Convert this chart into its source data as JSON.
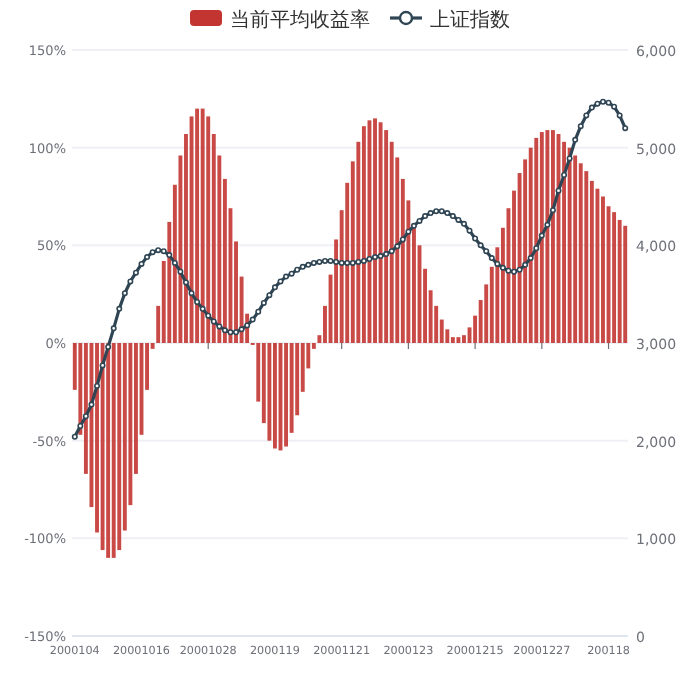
{
  "chart_data": {
    "type": "bar",
    "categories": [
      "2000104",
      null,
      null,
      null,
      null,
      null,
      null,
      null,
      null,
      null,
      null,
      null,
      "20001016",
      null,
      null,
      null,
      null,
      null,
      null,
      null,
      null,
      null,
      null,
      null,
      "20001028",
      null,
      null,
      null,
      null,
      null,
      null,
      null,
      null,
      null,
      null,
      null,
      "2000119",
      null,
      null,
      null,
      null,
      null,
      null,
      null,
      null,
      null,
      null,
      null,
      "20001121",
      null,
      null,
      null,
      null,
      null,
      null,
      null,
      null,
      null,
      null,
      null,
      "2000123",
      null,
      null,
      null,
      null,
      null,
      null,
      null,
      null,
      null,
      null,
      null,
      "20001215",
      null,
      null,
      null,
      null,
      null,
      null,
      null,
      null,
      null,
      null,
      null,
      "20001227",
      null,
      null,
      null,
      null,
      null,
      null,
      null,
      null,
      null,
      null,
      null,
      "200118",
      null,
      null,
      null
    ],
    "series": [
      {
        "name": "当前平均收益率",
        "type": "bar",
        "color": "#c23531",
        "values": [
          -24,
          -47,
          -67,
          -84,
          -97,
          -106,
          -110,
          -110,
          -106,
          -96,
          -83,
          -67,
          -47,
          -24,
          -3,
          19,
          42,
          62,
          81,
          96,
          107,
          116,
          120,
          120,
          116,
          107,
          96,
          84,
          69,
          52,
          34,
          15,
          -1,
          -30,
          -41,
          -50,
          -54,
          -55,
          -53,
          -46,
          -37,
          -25,
          -13,
          -3,
          4,
          19,
          35,
          53,
          68,
          82,
          93,
          103,
          111,
          114,
          115,
          113,
          109,
          103,
          95,
          84,
          73,
          60,
          50,
          38,
          27,
          19,
          12,
          7,
          3,
          3,
          4,
          8,
          14,
          22,
          30,
          39,
          49,
          59,
          69,
          78,
          87,
          94,
          100,
          105,
          108,
          109,
          109,
          107,
          103,
          100,
          96,
          92,
          88,
          83,
          79,
          75,
          70,
          67,
          63,
          60
        ]
      },
      {
        "name": "上证指数",
        "type": "line",
        "axis": "y2",
        "color": "#2f4554",
        "marker": "circle",
        "values": [
          2040,
          2150,
          2250,
          2370,
          2560,
          2770,
          2960,
          3150,
          3350,
          3510,
          3630,
          3720,
          3810,
          3880,
          3930,
          3950,
          3940,
          3900,
          3820,
          3730,
          3620,
          3510,
          3420,
          3350,
          3280,
          3220,
          3170,
          3130,
          3110,
          3110,
          3140,
          3180,
          3240,
          3320,
          3410,
          3490,
          3570,
          3630,
          3680,
          3710,
          3750,
          3780,
          3800,
          3820,
          3830,
          3840,
          3840,
          3830,
          3820,
          3820,
          3820,
          3830,
          3840,
          3860,
          3880,
          3890,
          3910,
          3940,
          3990,
          4060,
          4140,
          4200,
          4250,
          4300,
          4330,
          4350,
          4350,
          4330,
          4300,
          4260,
          4220,
          4150,
          4070,
          4000,
          3940,
          3870,
          3810,
          3770,
          3740,
          3730,
          3750,
          3800,
          3870,
          3970,
          4100,
          4210,
          4360,
          4560,
          4720,
          4890,
          5080,
          5220,
          5330,
          5410,
          5450,
          5470,
          5460,
          5420,
          5330,
          5200
        ]
      }
    ],
    "ylim": [
      -150,
      150
    ],
    "yticks": [
      {
        "value": -150,
        "label": "-150%"
      },
      {
        "value": -100,
        "label": "-100%"
      },
      {
        "value": -50,
        "label": "-50%"
      },
      {
        "value": 0,
        "label": "0%"
      },
      {
        "value": 50,
        "label": "50%"
      },
      {
        "value": 100,
        "label": "100%"
      },
      {
        "value": 150,
        "label": "150%"
      }
    ],
    "y2lim": [
      0,
      6000
    ],
    "y2ticks": [
      0,
      {
        "value": 1000,
        "label": "1,000"
      },
      {
        "value": 2000,
        "label": "2,000"
      },
      {
        "value": 3000,
        "label": "3,000"
      },
      {
        "value": 4000,
        "label": "4,000"
      },
      {
        "value": 5000,
        "label": "5,000"
      },
      {
        "value": 6000,
        "label": "6,000"
      }
    ],
    "grid": "y",
    "legend": "top"
  }
}
